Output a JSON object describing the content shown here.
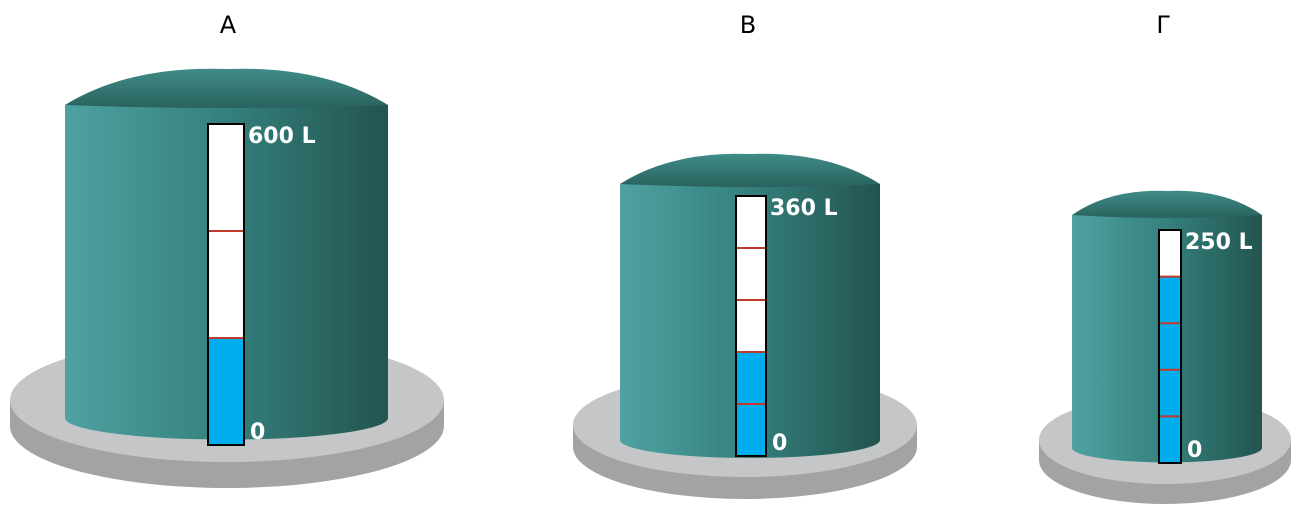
{
  "tanks": [
    {
      "label": "Α",
      "capacity_label": "600 L",
      "zero_label": "0",
      "divisions": 3,
      "filled": 1
    },
    {
      "label": "Β",
      "capacity_label": "360 L",
      "zero_label": "0",
      "divisions": 5,
      "filled": 2
    },
    {
      "label": "Γ",
      "capacity_label": "250 L",
      "zero_label": "0",
      "divisions": 5,
      "filled": 4
    }
  ]
}
